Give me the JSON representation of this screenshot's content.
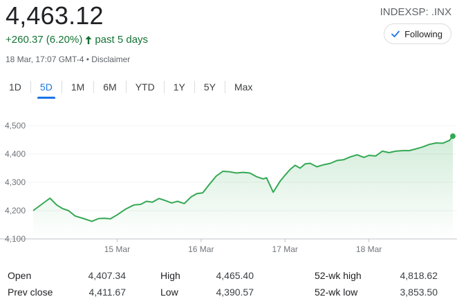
{
  "quote": {
    "price": "4,463.12",
    "change": "+260.37 (6.20%)",
    "period": "past 5 days",
    "timestamp": "18 Mar, 17:07 GMT-4",
    "separator": "•",
    "disclaimer": "Disclaimer",
    "symbol": "INDEXSP: .INX",
    "follow_label": "Following",
    "up_color": "#137333",
    "arrow_icon": "arrow-up-icon",
    "check_icon": "check-icon"
  },
  "tabs": [
    {
      "label": "1D",
      "active": false
    },
    {
      "label": "5D",
      "active": true
    },
    {
      "label": "1M",
      "active": false
    },
    {
      "label": "6M",
      "active": false
    },
    {
      "label": "YTD",
      "active": false
    },
    {
      "label": "1Y",
      "active": false
    },
    {
      "label": "5Y",
      "active": false
    },
    {
      "label": "Max",
      "active": false
    }
  ],
  "chart_data": {
    "type": "area",
    "color": "#34a853",
    "ylim": [
      4100,
      4500
    ],
    "yticks": [
      4100,
      4200,
      4300,
      4400,
      4500
    ],
    "ytick_labels": [
      "4,100",
      "4,200",
      "4,300",
      "4,400",
      "4,500"
    ],
    "xlim": [
      0,
      5
    ],
    "xticks": [
      1,
      2,
      3,
      4
    ],
    "xtick_labels": [
      "15 Mar",
      "16 Mar",
      "17 Mar",
      "18 Mar"
    ],
    "grid": true,
    "legend": "none",
    "x": [
      0.0,
      0.1,
      0.2,
      0.28,
      0.35,
      0.42,
      0.5,
      0.6,
      0.7,
      0.78,
      0.85,
      0.92,
      1.0,
      1.1,
      1.2,
      1.28,
      1.35,
      1.42,
      1.5,
      1.58,
      1.65,
      1.72,
      1.8,
      1.88,
      1.95,
      2.02,
      2.1,
      2.18,
      2.26,
      2.34,
      2.42,
      2.5,
      2.58,
      2.66,
      2.74,
      2.78,
      2.86,
      2.94,
      3.0,
      3.06,
      3.12,
      3.18,
      3.24,
      3.3,
      3.38,
      3.46,
      3.54,
      3.62,
      3.7,
      3.78,
      3.86,
      3.94,
      4.0,
      4.08,
      4.16,
      4.24,
      4.32,
      4.4,
      4.48,
      4.56,
      4.64,
      4.72,
      4.8,
      4.88,
      4.96,
      5.0
    ],
    "values": [
      4200,
      4222,
      4244,
      4220,
      4207,
      4200,
      4181,
      4172,
      4162,
      4172,
      4173,
      4171,
      4185,
      4205,
      4220,
      4222,
      4233,
      4230,
      4243,
      4235,
      4227,
      4233,
      4225,
      4248,
      4260,
      4263,
      4293,
      4322,
      4339,
      4337,
      4333,
      4335,
      4333,
      4320,
      4312,
      4316,
      4265,
      4303,
      4325,
      4345,
      4360,
      4350,
      4365,
      4367,
      4355,
      4362,
      4367,
      4377,
      4380,
      4390,
      4397,
      4388,
      4395,
      4393,
      4410,
      4405,
      4410,
      4412,
      4412,
      4418,
      4425,
      4434,
      4439,
      4438,
      4448,
      4463
    ]
  },
  "stats": {
    "open_label": "Open",
    "open": "4,407.34",
    "high_label": "High",
    "high": "4,465.40",
    "wkhigh_label": "52-wk high",
    "wkhigh": "4,818.62",
    "prev_label": "Prev close",
    "prev": "4,411.67",
    "low_label": "Low",
    "low": "4,390.57",
    "wklow_label": "52-wk low",
    "wklow": "3,853.50"
  }
}
